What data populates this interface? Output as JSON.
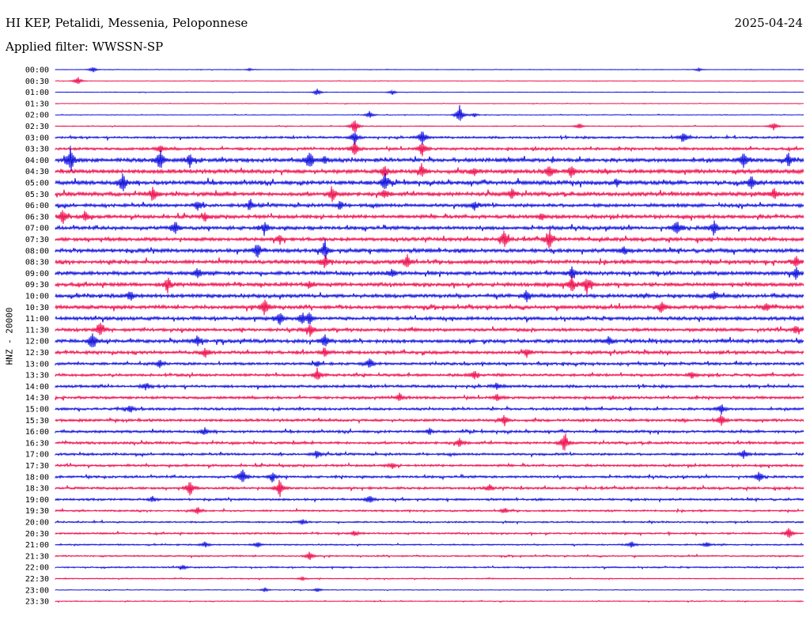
{
  "header": {
    "station": "HI KEP, Petalidi, Messenia, Peloponnese",
    "date": "2025-04-24",
    "filter": "Applied filter: WWSSN-SP",
    "channel": "HNZ - 20000"
  },
  "colors": {
    "even_trace": "#0000dd",
    "odd_trace": "#ee0044"
  },
  "chart_data": {
    "type": "helicorder",
    "title": "HI KEP, Petalidi, Messenia, Peloponnese",
    "ylabel": "HNZ - 20000",
    "row_labels": [
      "00:00",
      "00:30",
      "01:00",
      "01:30",
      "02:00",
      "02:30",
      "03:00",
      "03:30",
      "04:00",
      "04:30",
      "05:00",
      "05:30",
      "06:00",
      "06:30",
      "07:00",
      "07:30",
      "08:00",
      "08:30",
      "09:00",
      "09:30",
      "10:00",
      "10:30",
      "11:00",
      "11:30",
      "12:00",
      "12:30",
      "13:00",
      "13:30",
      "14:00",
      "14:30",
      "15:00",
      "15:30",
      "16:00",
      "16:30",
      "17:00",
      "17:30",
      "18:00",
      "18:30",
      "19:00",
      "19:30",
      "20:00",
      "20:30",
      "21:00",
      "21:30",
      "22:00",
      "22:30",
      "23:00",
      "23:30"
    ],
    "row_noise": [
      0.3,
      0.3,
      0.3,
      0.3,
      0.4,
      0.5,
      1.2,
      1.5,
      2.2,
      2.3,
      2.3,
      2.2,
      1.9,
      2.0,
      2.0,
      2.0,
      2.2,
      2.1,
      2.1,
      2.1,
      2.1,
      2.0,
      1.9,
      1.8,
      2.0,
      1.8,
      1.5,
      1.5,
      1.5,
      1.5,
      1.4,
      1.5,
      1.4,
      1.4,
      1.3,
      1.3,
      1.3,
      1.3,
      1.2,
      1.0,
      0.9,
      1.0,
      0.8,
      0.8,
      0.8,
      0.6,
      0.4,
      0.5
    ],
    "row_events": [
      [
        [
          0.05,
          4
        ],
        [
          0.26,
          2
        ],
        [
          0.86,
          2
        ]
      ],
      [
        [
          0.03,
          6
        ]
      ],
      [
        [
          0.35,
          5
        ],
        [
          0.45,
          3
        ]
      ],
      [],
      [
        [
          0.42,
          5
        ],
        [
          0.54,
          13
        ],
        [
          0.56,
          3
        ]
      ],
      [
        [
          0.4,
          12
        ],
        [
          0.96,
          6
        ],
        [
          0.7,
          4
        ]
      ],
      [
        [
          0.4,
          9
        ],
        [
          0.49,
          11
        ],
        [
          0.84,
          8
        ]
      ],
      [
        [
          0.4,
          10
        ],
        [
          0.49,
          10
        ],
        [
          0.14,
          5
        ]
      ],
      [
        [
          0.02,
          18
        ],
        [
          0.14,
          14
        ],
        [
          0.18,
          9
        ],
        [
          0.34,
          14
        ],
        [
          0.36,
          5
        ],
        [
          0.92,
          12
        ],
        [
          0.98,
          8
        ]
      ],
      [
        [
          0.44,
          8
        ],
        [
          0.49,
          9
        ],
        [
          0.56,
          5
        ],
        [
          0.66,
          10
        ],
        [
          0.69,
          8
        ]
      ],
      [
        [
          0.09,
          12
        ],
        [
          0.44,
          11
        ],
        [
          0.93,
          8
        ],
        [
          0.75,
          5
        ]
      ],
      [
        [
          0.13,
          9
        ],
        [
          0.37,
          10
        ],
        [
          0.44,
          6
        ],
        [
          0.61,
          7
        ],
        [
          0.96,
          8
        ]
      ],
      [
        [
          0.19,
          7
        ],
        [
          0.26,
          7
        ],
        [
          0.38,
          6
        ],
        [
          0.56,
          6
        ]
      ],
      [
        [
          0.01,
          10
        ],
        [
          0.04,
          8
        ],
        [
          0.2,
          6
        ],
        [
          0.65,
          5
        ]
      ],
      [
        [
          0.16,
          9
        ],
        [
          0.28,
          8
        ],
        [
          0.83,
          11
        ],
        [
          0.88,
          10
        ]
      ],
      [
        [
          0.6,
          12
        ],
        [
          0.66,
          14
        ],
        [
          0.3,
          6
        ]
      ],
      [
        [
          0.27,
          11
        ],
        [
          0.36,
          12
        ],
        [
          0.76,
          6
        ]
      ],
      [
        [
          0.36,
          8
        ],
        [
          0.47,
          10
        ],
        [
          0.99,
          8
        ]
      ],
      [
        [
          0.19,
          7
        ],
        [
          0.45,
          5
        ],
        [
          0.69,
          7
        ],
        [
          0.99,
          9
        ]
      ],
      [
        [
          0.15,
          10
        ],
        [
          0.69,
          12
        ],
        [
          0.71,
          13
        ],
        [
          0.34,
          5
        ]
      ],
      [
        [
          0.1,
          7
        ],
        [
          0.63,
          9
        ],
        [
          0.88,
          6
        ]
      ],
      [
        [
          0.28,
          12
        ],
        [
          0.81,
          10
        ],
        [
          0.95,
          7
        ]
      ],
      [
        [
          0.3,
          10
        ],
        [
          0.33,
          8
        ],
        [
          0.34,
          8
        ]
      ],
      [
        [
          0.06,
          9
        ],
        [
          0.34,
          8
        ],
        [
          0.99,
          6
        ]
      ],
      [
        [
          0.05,
          13
        ],
        [
          0.36,
          9
        ],
        [
          0.19,
          8
        ],
        [
          0.74,
          6
        ]
      ],
      [
        [
          0.2,
          7
        ],
        [
          0.36,
          5
        ],
        [
          0.63,
          6
        ]
      ],
      [
        [
          0.14,
          5
        ],
        [
          0.42,
          8
        ],
        [
          0.35,
          4
        ]
      ],
      [
        [
          0.35,
          9
        ],
        [
          0.56,
          6
        ],
        [
          0.85,
          5
        ]
      ],
      [
        [
          0.12,
          5
        ],
        [
          0.59,
          5
        ]
      ],
      [
        [
          0.46,
          6
        ],
        [
          0.59,
          5
        ]
      ],
      [
        [
          0.1,
          6
        ],
        [
          0.89,
          7
        ]
      ],
      [
        [
          0.6,
          8
        ],
        [
          0.89,
          9
        ]
      ],
      [
        [
          0.2,
          5
        ],
        [
          0.5,
          4
        ]
      ],
      [
        [
          0.68,
          14
        ],
        [
          0.54,
          6
        ]
      ],
      [
        [
          0.35,
          6
        ],
        [
          0.92,
          6
        ]
      ],
      [
        [
          0.45,
          4
        ]
      ],
      [
        [
          0.25,
          12
        ],
        [
          0.29,
          7
        ],
        [
          0.94,
          7
        ]
      ],
      [
        [
          0.18,
          11
        ],
        [
          0.3,
          12
        ],
        [
          0.58,
          5
        ]
      ],
      [
        [
          0.13,
          4
        ],
        [
          0.42,
          6
        ]
      ],
      [
        [
          0.19,
          5
        ],
        [
          0.6,
          4
        ]
      ],
      [
        [
          0.33,
          4
        ]
      ],
      [
        [
          0.98,
          8
        ],
        [
          0.4,
          4
        ]
      ],
      [
        [
          0.2,
          4
        ],
        [
          0.27,
          4
        ],
        [
          0.77,
          4
        ],
        [
          0.87,
          4
        ]
      ],
      [
        [
          0.34,
          6
        ]
      ],
      [
        [
          0.17,
          3
        ]
      ],
      [
        [
          0.33,
          3
        ]
      ],
      [
        [
          0.28,
          3
        ],
        [
          0.35,
          3
        ]
      ],
      []
    ]
  }
}
